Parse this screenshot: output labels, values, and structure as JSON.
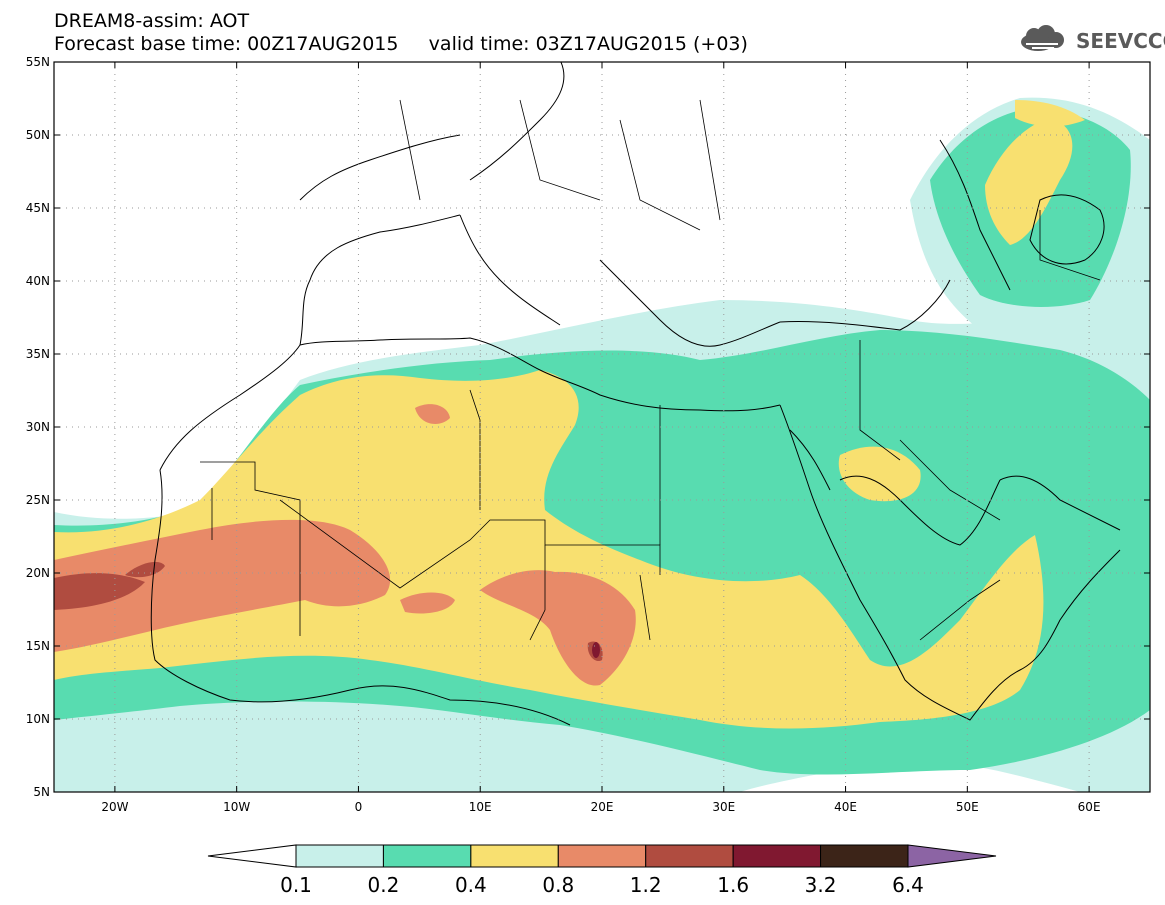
{
  "title": {
    "line1": "DREAM8-assim: AOT",
    "line2": "Forecast base time: 00Z17AUG2015     valid time: 03Z17AUG2015 (+03)"
  },
  "logo": {
    "text": "SEEVCCC",
    "icon": "cloud-logo-icon"
  },
  "map": {
    "lon_range": [
      -25,
      65
    ],
    "lat_range": [
      5,
      55
    ],
    "lat_ticks": [
      {
        "value": 55,
        "label": "55N"
      },
      {
        "value": 50,
        "label": "50N"
      },
      {
        "value": 45,
        "label": "45N"
      },
      {
        "value": 40,
        "label": "40N"
      },
      {
        "value": 35,
        "label": "35N"
      },
      {
        "value": 30,
        "label": "30N"
      },
      {
        "value": 25,
        "label": "25N"
      },
      {
        "value": 20,
        "label": "20N"
      },
      {
        "value": 15,
        "label": "15N"
      },
      {
        "value": 10,
        "label": "10N"
      },
      {
        "value": 5,
        "label": "5N"
      }
    ],
    "lon_ticks": [
      {
        "value": -20,
        "label": "20W"
      },
      {
        "value": -10,
        "label": "10W"
      },
      {
        "value": 0,
        "label": "0"
      },
      {
        "value": 10,
        "label": "10E"
      },
      {
        "value": 20,
        "label": "20E"
      },
      {
        "value": 30,
        "label": "30E"
      },
      {
        "value": 40,
        "label": "40E"
      },
      {
        "value": 50,
        "label": "50E"
      },
      {
        "value": 60,
        "label": "60E"
      }
    ]
  },
  "colorbar": {
    "levels": [
      "0.1",
      "0.2",
      "0.4",
      "0.8",
      "1.2",
      "1.6",
      "3.2",
      "6.4"
    ],
    "colors": [
      "#ffffff",
      "#c8f0ea",
      "#58dcb0",
      "#f8e070",
      "#e88a68",
      "#b04c40",
      "#801830",
      "#3c2418",
      "#8c64a4"
    ]
  }
}
